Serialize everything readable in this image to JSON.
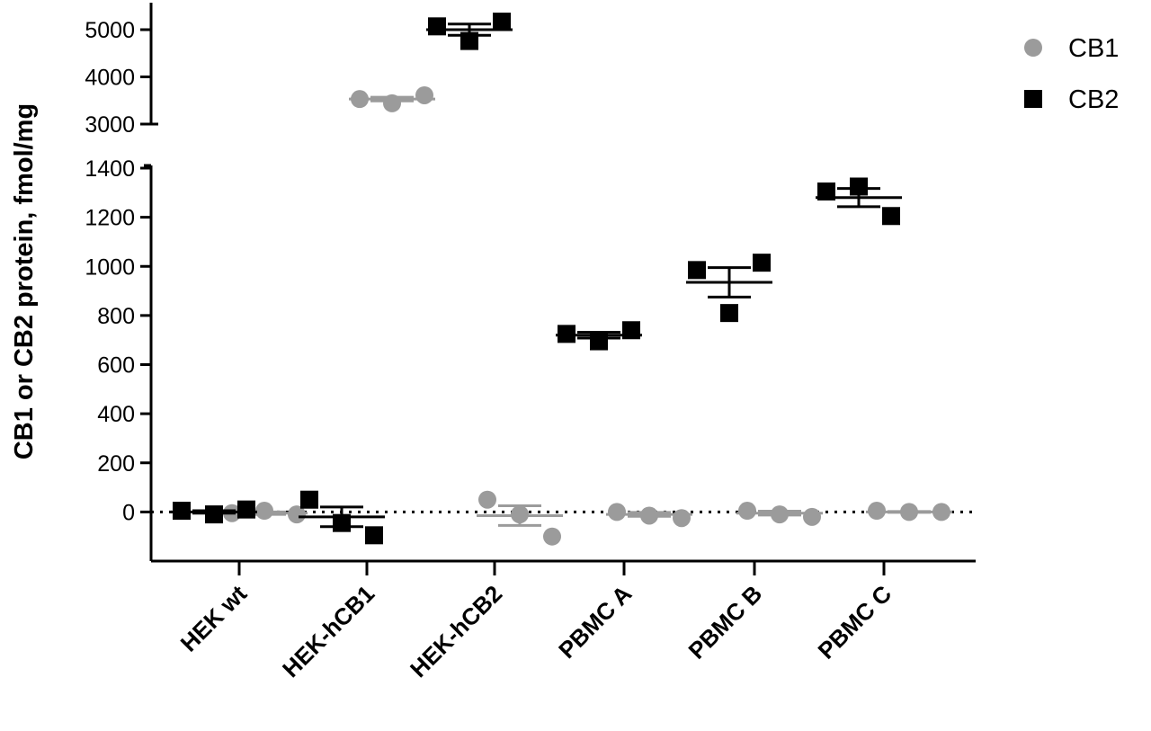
{
  "chart_data": {
    "type": "scatter",
    "ylabel": "CB1 or CB2 protein, fmol/mg",
    "xlabel": "",
    "categories": [
      "HEK wt",
      "HEK-hCB1",
      "HEK-hCB2",
      "PBMC A",
      "PBMC B",
      "PBMC C"
    ],
    "y_axis_segments": [
      {
        "range": [
          -200,
          1400
        ],
        "ticks": [
          0,
          200,
          400,
          600,
          800,
          1000,
          1200,
          1400
        ]
      },
      {
        "range": [
          3000,
          5000
        ],
        "ticks": [
          3000,
          4000,
          5000
        ]
      }
    ],
    "reference_line": {
      "y": 0,
      "style": "dotted"
    },
    "legend_position": "top-right",
    "series": [
      {
        "name": "CB1",
        "marker": "circle",
        "color": "#9b9b9b",
        "points": [
          [
            -5,
            5,
            -10
          ],
          [
            3530,
            3440,
            3610
          ],
          [
            50,
            -10,
            -100
          ],
          [
            0,
            -15,
            -25
          ],
          [
            5,
            -10,
            -20
          ],
          [
            5,
            0,
            0
          ]
        ],
        "means": [
          -5,
          3530,
          -15,
          -10,
          -5,
          0
        ],
        "errors": [
          5,
          40,
          40,
          8,
          8,
          2
        ]
      },
      {
        "name": "CB2",
        "marker": "square",
        "color": "#000000",
        "points": [
          [
            5,
            -10,
            10
          ],
          [
            50,
            -45,
            -95
          ],
          [
            5070,
            4760,
            5170
          ],
          [
            725,
            695,
            740
          ],
          [
            985,
            810,
            1015
          ],
          [
            1305,
            1325,
            1205
          ]
        ],
        "means": [
          0,
          -20,
          5000,
          720,
          935,
          1280
        ],
        "errors": [
          5,
          40,
          120,
          12,
          60,
          37
        ]
      }
    ]
  }
}
